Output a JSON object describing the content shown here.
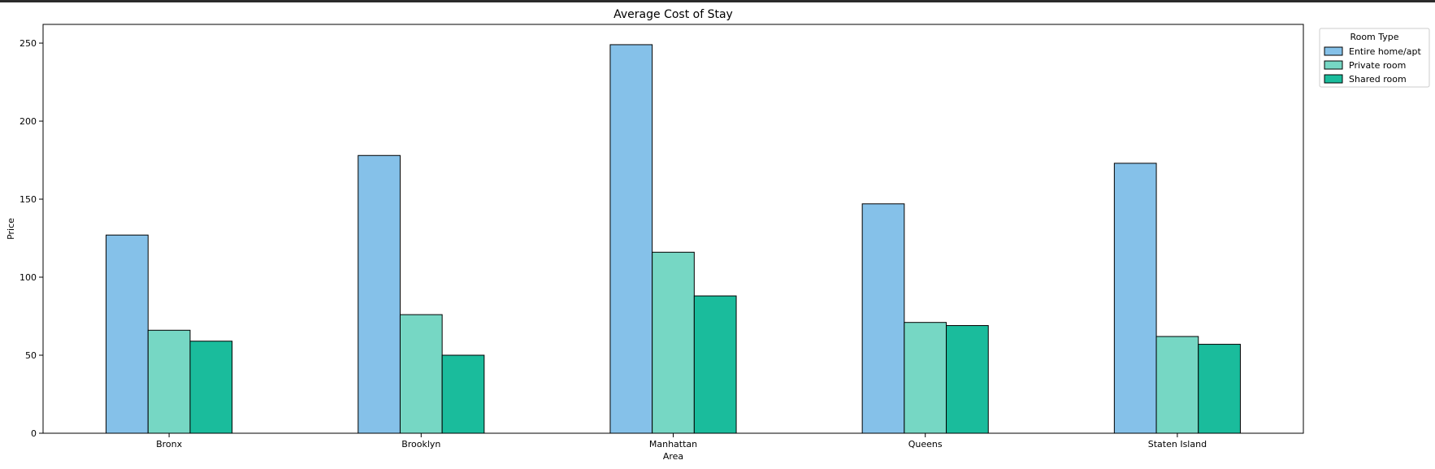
{
  "chart_data": {
    "type": "bar",
    "title": "Average Cost of Stay",
    "xlabel": "Area",
    "ylabel": "Price",
    "categories": [
      "Bronx",
      "Brooklyn",
      "Manhattan",
      "Queens",
      "Staten Island"
    ],
    "ylim": [
      0,
      262
    ],
    "yticks": [
      0,
      50,
      100,
      150,
      200,
      250
    ],
    "grid": false,
    "legend": {
      "title": "Room Type",
      "placement": "top-right outside"
    },
    "series": [
      {
        "name": "Entire home/apt",
        "color": "#85c1e9",
        "values": [
          127,
          178,
          249,
          147,
          173
        ]
      },
      {
        "name": "Private room",
        "color": "#76d7c4",
        "values": [
          66,
          76,
          116,
          71,
          62
        ]
      },
      {
        "name": "Shared room",
        "color": "#1abc9c",
        "values": [
          59,
          50,
          88,
          69,
          57
        ]
      }
    ]
  }
}
